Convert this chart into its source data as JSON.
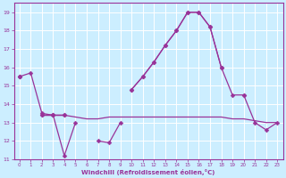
{
  "background_color": "#cceeff",
  "grid_color": "#ffffff",
  "line_color": "#993399",
  "markersize": 2.5,
  "linewidth": 0.9,
  "x": [
    0,
    1,
    2,
    3,
    4,
    5,
    6,
    7,
    8,
    9,
    10,
    11,
    12,
    13,
    14,
    15,
    16,
    17,
    18,
    19,
    20,
    21,
    22,
    23
  ],
  "series": [
    [
      15.5,
      15.7,
      13.5,
      13.4,
      11.2,
      13.0,
      null,
      12.0,
      11.9,
      13.0,
      null,
      null,
      null,
      null,
      null,
      null,
      null,
      null,
      null,
      null,
      null,
      null,
      null,
      null
    ],
    [
      15.5,
      null,
      13.4,
      13.4,
      13.4,
      13.3,
      13.2,
      13.2,
      13.3,
      13.3,
      13.3,
      13.3,
      13.3,
      13.3,
      13.3,
      13.3,
      13.3,
      13.3,
      13.3,
      13.2,
      13.2,
      13.1,
      13.0,
      13.0
    ],
    [
      15.5,
      null,
      13.4,
      13.4,
      13.4,
      null,
      null,
      null,
      null,
      null,
      14.8,
      15.5,
      16.3,
      17.2,
      18.0,
      19.0,
      19.0,
      18.2,
      16.0,
      null,
      14.5,
      null,
      null,
      null
    ],
    [
      15.5,
      null,
      13.4,
      13.4,
      13.4,
      null,
      null,
      null,
      null,
      null,
      14.8,
      15.5,
      16.3,
      17.2,
      18.0,
      19.0,
      19.0,
      18.2,
      16.0,
      14.5,
      14.5,
      13.0,
      12.6,
      13.0
    ]
  ],
  "markers": [
    true,
    false,
    true,
    true
  ],
  "xlabel": "Windchill (Refroidissement éolien,°C)",
  "xlim": [
    -0.5,
    23.5
  ],
  "ylim": [
    11,
    19.5
  ],
  "yticks": [
    11,
    12,
    13,
    14,
    15,
    16,
    17,
    18,
    19
  ],
  "xticks": [
    0,
    1,
    2,
    3,
    4,
    5,
    6,
    7,
    8,
    9,
    10,
    11,
    12,
    13,
    14,
    15,
    16,
    17,
    18,
    19,
    20,
    21,
    22,
    23
  ]
}
